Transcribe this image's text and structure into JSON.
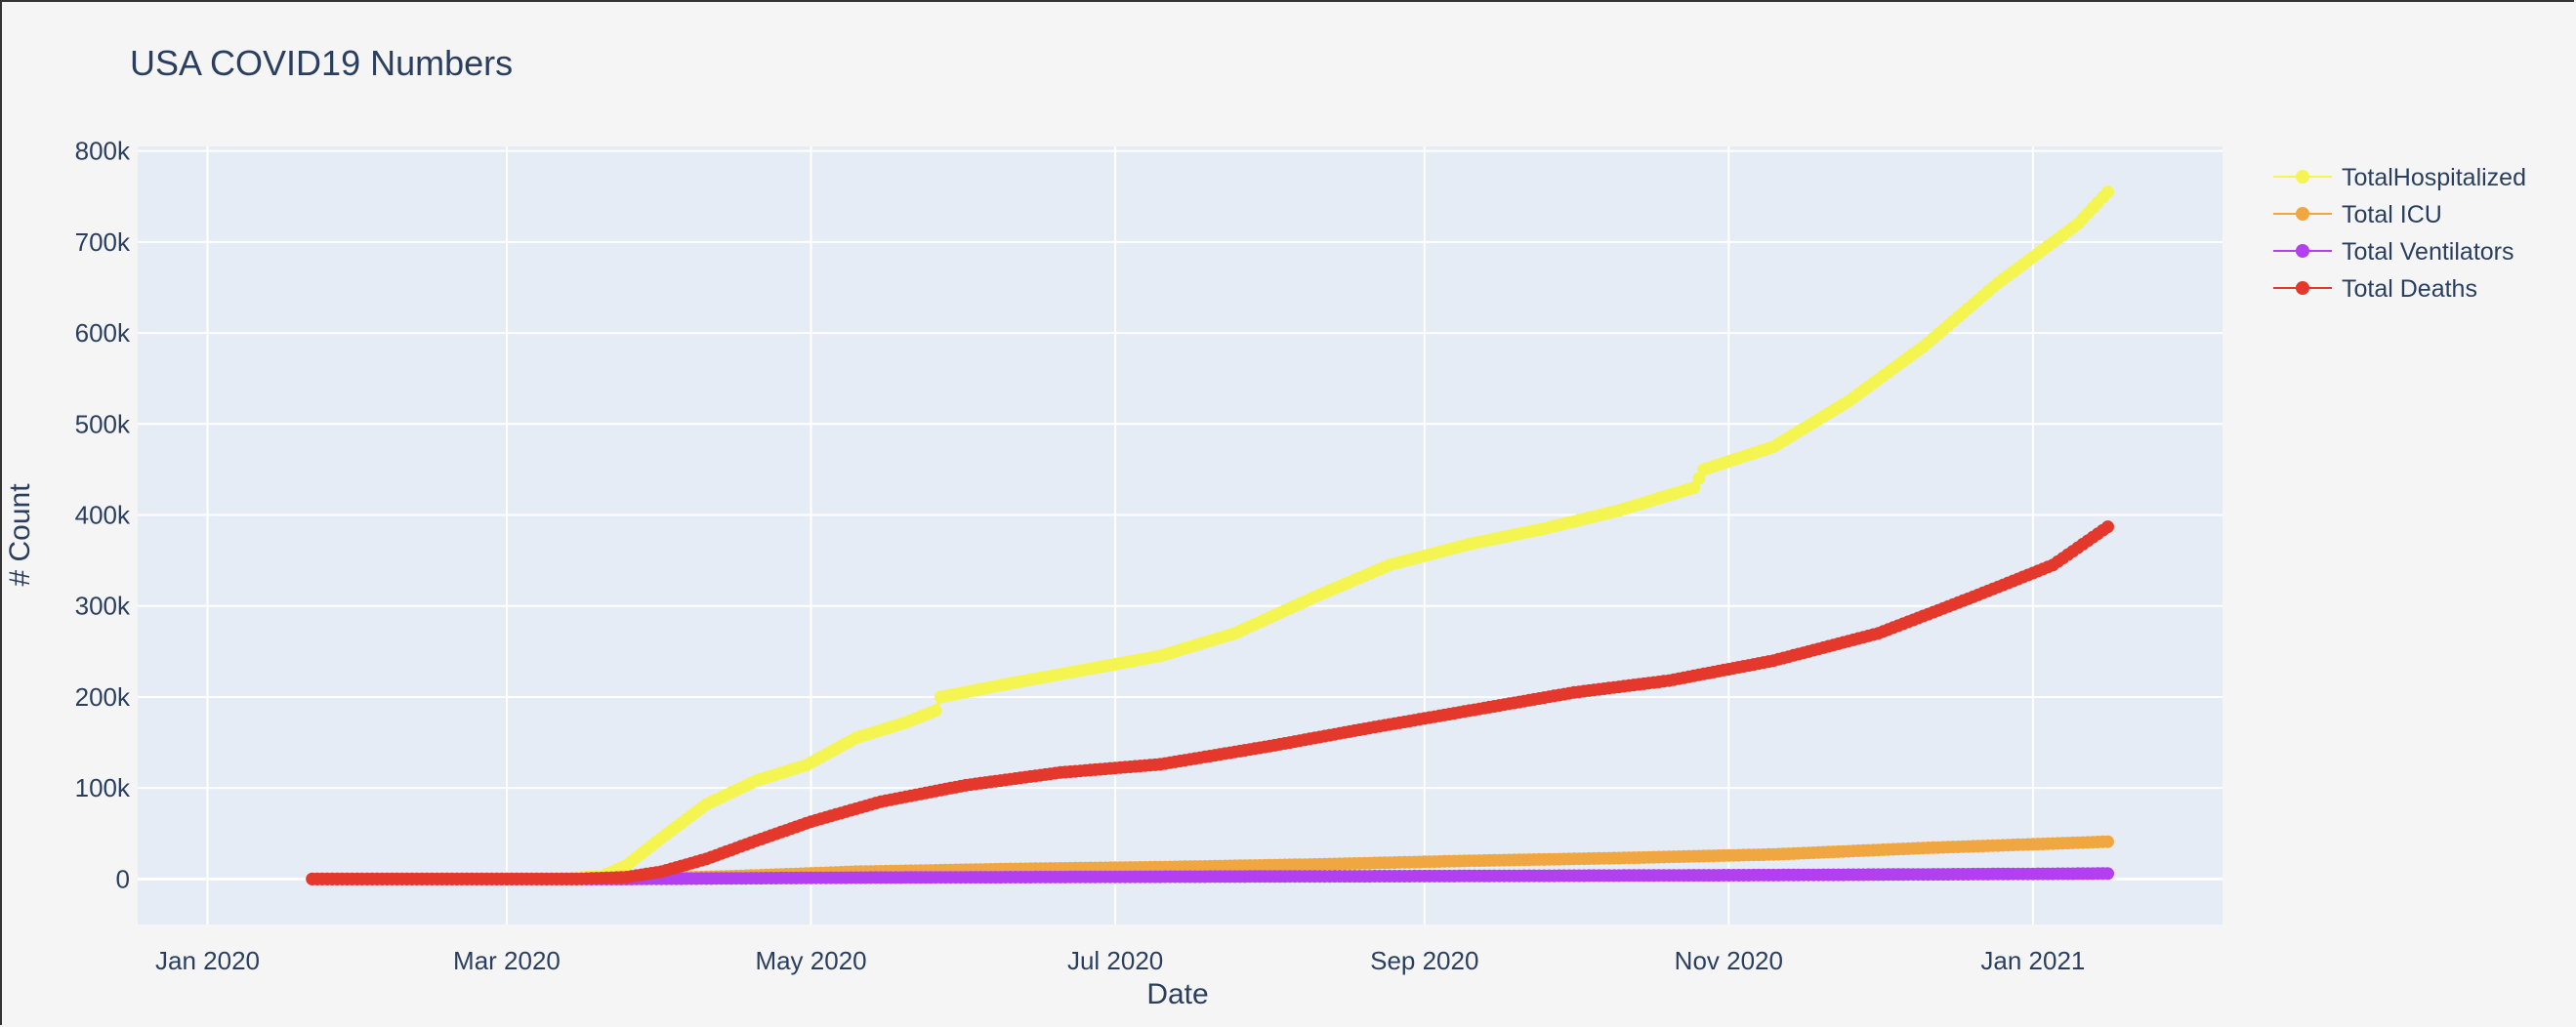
{
  "chart_data": {
    "type": "line",
    "title": "USA COVID19 Numbers",
    "xlabel": "Date",
    "ylabel": "# Count",
    "x_ticks": [
      "Jan 2020",
      "Mar 2020",
      "May 2020",
      "Jul 2020",
      "Sep 2020",
      "Nov 2020",
      "Jan 2021"
    ],
    "x_tick_dates": [
      "2020-01-01",
      "2020-03-01",
      "2020-05-01",
      "2020-07-01",
      "2020-09-01",
      "2020-11-01",
      "2021-01-01"
    ],
    "y_ticks": [
      "0",
      "100k",
      "200k",
      "300k",
      "400k",
      "500k",
      "600k",
      "700k",
      "800k"
    ],
    "y_tick_values": [
      0,
      100000,
      200000,
      300000,
      400000,
      500000,
      600000,
      700000,
      800000
    ],
    "xlim": [
      "2019-12-18",
      "2021-02-08"
    ],
    "ylim": [
      -50000,
      805000
    ],
    "grid": true,
    "legend_position": "top-right",
    "mode": "lines+markers",
    "series": [
      {
        "name": "TotalHospitalized",
        "color": "#f5f552",
        "points": [
          [
            "2020-01-22",
            0
          ],
          [
            "2020-03-10",
            0
          ],
          [
            "2020-03-20",
            3000
          ],
          [
            "2020-03-25",
            15000
          ],
          [
            "2020-04-01",
            45000
          ],
          [
            "2020-04-10",
            82000
          ],
          [
            "2020-04-20",
            108000
          ],
          [
            "2020-04-30",
            125000
          ],
          [
            "2020-05-10",
            155000
          ],
          [
            "2020-05-20",
            172000
          ],
          [
            "2020-05-26",
            185000
          ],
          [
            "2020-05-27",
            200000
          ],
          [
            "2020-06-10",
            215000
          ],
          [
            "2020-06-25",
            230000
          ],
          [
            "2020-07-10",
            245000
          ],
          [
            "2020-07-25",
            270000
          ],
          [
            "2020-08-10",
            310000
          ],
          [
            "2020-08-25",
            345000
          ],
          [
            "2020-09-10",
            368000
          ],
          [
            "2020-09-25",
            385000
          ],
          [
            "2020-10-10",
            405000
          ],
          [
            "2020-10-25",
            430000
          ],
          [
            "2020-10-27",
            450000
          ],
          [
            "2020-11-10",
            475000
          ],
          [
            "2020-11-25",
            525000
          ],
          [
            "2020-12-10",
            585000
          ],
          [
            "2020-12-25",
            655000
          ],
          [
            "2021-01-10",
            720000
          ],
          [
            "2021-01-16",
            755000
          ]
        ]
      },
      {
        "name": "Total ICU",
        "color": "#f0a742",
        "points": [
          [
            "2020-01-22",
            0
          ],
          [
            "2020-03-25",
            0
          ],
          [
            "2020-04-15",
            3000
          ],
          [
            "2020-05-10",
            8000
          ],
          [
            "2020-06-10",
            11000
          ],
          [
            "2020-07-10",
            13000
          ],
          [
            "2020-08-10",
            16000
          ],
          [
            "2020-09-10",
            20000
          ],
          [
            "2020-10-10",
            23000
          ],
          [
            "2020-11-10",
            27000
          ],
          [
            "2020-12-10",
            34000
          ],
          [
            "2021-01-16",
            41000
          ]
        ]
      },
      {
        "name": "Total Ventilators",
        "color": "#b23ff0",
        "points": [
          [
            "2020-01-22",
            0
          ],
          [
            "2020-03-25",
            0
          ],
          [
            "2020-05-10",
            1500
          ],
          [
            "2020-07-10",
            2500
          ],
          [
            "2020-09-10",
            3300
          ],
          [
            "2020-11-10",
            4300
          ],
          [
            "2021-01-16",
            6000
          ]
        ]
      },
      {
        "name": "Total Deaths",
        "color": "#e5382c",
        "points": [
          [
            "2020-01-22",
            0
          ],
          [
            "2020-03-15",
            0
          ],
          [
            "2020-03-25",
            2000
          ],
          [
            "2020-04-01",
            8000
          ],
          [
            "2020-04-10",
            22000
          ],
          [
            "2020-04-20",
            42000
          ],
          [
            "2020-05-01",
            63000
          ],
          [
            "2020-05-15",
            85000
          ],
          [
            "2020-06-01",
            103000
          ],
          [
            "2020-06-20",
            117000
          ],
          [
            "2020-07-10",
            126000
          ],
          [
            "2020-08-01",
            146000
          ],
          [
            "2020-08-20",
            165000
          ],
          [
            "2020-09-10",
            185000
          ],
          [
            "2020-10-01",
            205000
          ],
          [
            "2020-10-20",
            218000
          ],
          [
            "2020-11-10",
            240000
          ],
          [
            "2020-12-01",
            270000
          ],
          [
            "2020-12-20",
            310000
          ],
          [
            "2021-01-05",
            345000
          ],
          [
            "2021-01-16",
            387000
          ]
        ]
      }
    ]
  }
}
